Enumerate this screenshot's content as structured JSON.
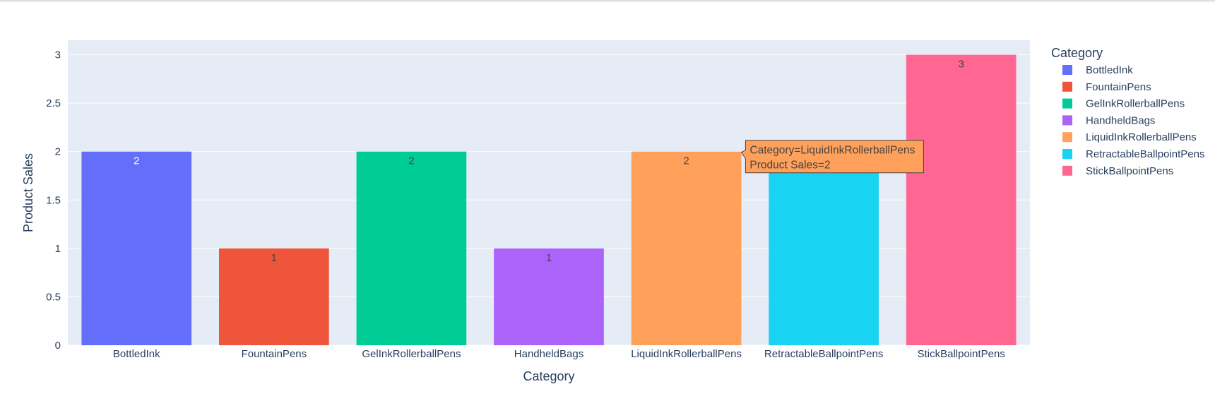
{
  "chart_data": {
    "type": "bar",
    "categories": [
      "BottledInk",
      "FountainPens",
      "GelInkRollerballPens",
      "HandheldBags",
      "LiquidInkRollerballPens",
      "RetractableBallpointPens",
      "StickBallpointPens"
    ],
    "values": [
      2,
      1,
      2,
      1,
      2,
      2,
      3
    ],
    "colors": [
      "#636efa",
      "#ef553b",
      "#00cc96",
      "#ab63fa",
      "#ffa15a",
      "#19d3f3",
      "#ff6692"
    ],
    "label_colors": [
      "#ffffff",
      "#444444",
      "#444444",
      "#444444",
      "#444444",
      "#444444",
      "#444444"
    ],
    "xlabel": "Category",
    "ylabel": "Product Sales",
    "ylim": [
      0,
      3.15
    ],
    "yticks": [
      "0",
      "0.5",
      "1",
      "1.5",
      "2",
      "2.5",
      "3"
    ],
    "ytick_values": [
      0,
      0.5,
      1,
      1.5,
      2,
      2.5,
      3
    ],
    "grid": true,
    "legend": {
      "title": "Category",
      "placement": "right",
      "entries": [
        "BottledInk",
        "FountainPens",
        "GelInkRollerballPens",
        "HandheldBags",
        "LiquidInkRollerballPens",
        "RetractableBallpointPens",
        "StickBallpointPens"
      ]
    },
    "tooltip": {
      "category_index": 4,
      "line1": "Category=LiquidInkRollerballPens",
      "line2": "Product Sales=2"
    }
  }
}
